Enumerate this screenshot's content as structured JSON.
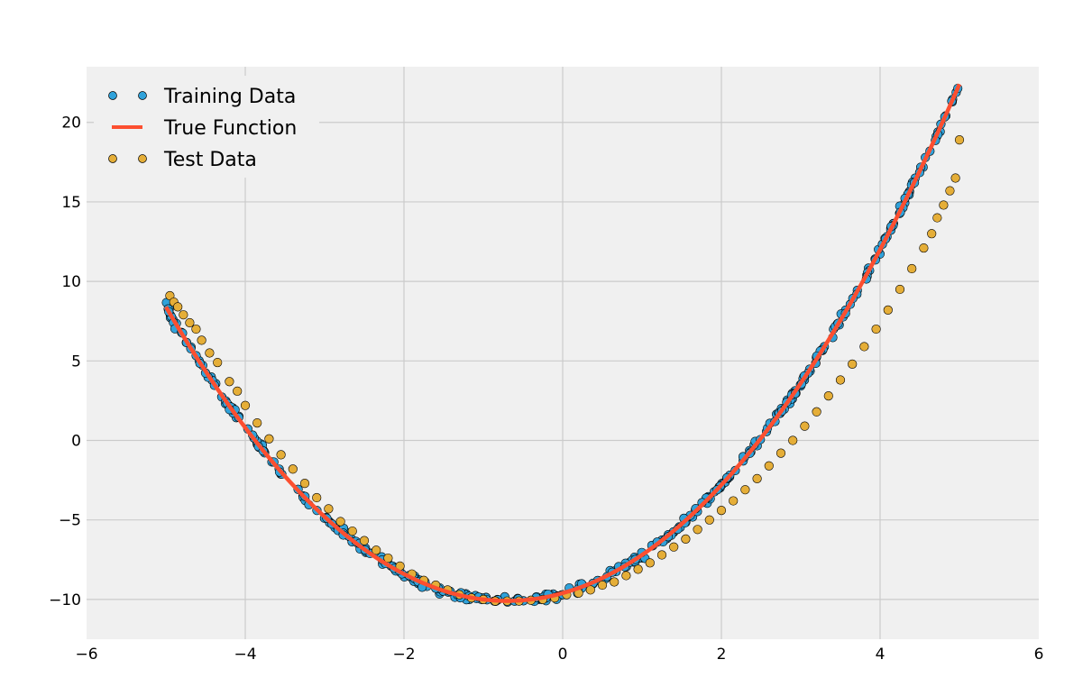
{
  "chart_data": {
    "type": "scatter",
    "title": "",
    "xlabel": "",
    "ylabel": "",
    "xlim": [
      -6,
      6
    ],
    "ylim": [
      -12.5,
      23.5
    ],
    "x_ticks": [
      -6,
      -4,
      -2,
      0,
      2,
      4,
      6
    ],
    "y_ticks": [
      -10,
      -5,
      0,
      5,
      10,
      15,
      20
    ],
    "x_tick_labels": [
      "−6",
      "−4",
      "−2",
      "0",
      "2",
      "4",
      "6"
    ],
    "y_tick_labels": [
      "−10",
      "−5",
      "0",
      "5",
      "10",
      "15",
      "20"
    ],
    "grid": true,
    "background": "#f0f0f0",
    "legend_position": "top-left",
    "true_function": {
      "name": "True Function",
      "formula": "x^2 + 1.4x - 9.6",
      "coefficients": {
        "a": 1.0,
        "b": 1.4,
        "c": -9.6
      },
      "x_range": [
        -5,
        5
      ],
      "color": "#fc4f30"
    },
    "series": [
      {
        "name": "Training Data",
        "color": "#30a2da",
        "count": 400,
        "x_range": [
          -5,
          5
        ],
        "noise_sd": 0.12
      },
      {
        "name": "True Function",
        "color": "#fc4f30"
      },
      {
        "name": "Test Data",
        "color": "#e5ae38",
        "x": [
          -4.95,
          -4.9,
          -4.85,
          -4.78,
          -4.7,
          -4.62,
          -4.55,
          -4.45,
          -4.35,
          -4.2,
          -4.1,
          -4.0,
          -3.85,
          -3.7,
          -3.55,
          -3.4,
          -3.25,
          -3.1,
          -2.95,
          -2.8,
          -2.65,
          -2.5,
          -2.35,
          -2.2,
          -2.05,
          -1.9,
          -1.75,
          -1.6,
          -1.45,
          -1.3,
          -1.15,
          -1.0,
          -0.85,
          -0.7,
          -0.55,
          -0.4,
          -0.25,
          -0.1,
          0.05,
          0.2,
          0.35,
          0.5,
          0.65,
          0.8,
          0.95,
          1.1,
          1.25,
          1.4,
          1.55,
          1.7,
          1.85,
          2.0,
          2.15,
          2.3,
          2.45,
          2.6,
          2.75,
          2.9,
          3.05,
          3.2,
          3.35,
          3.5,
          3.65,
          3.8,
          3.95,
          4.1,
          4.25,
          4.4,
          4.55,
          4.65,
          4.72,
          4.8,
          4.88,
          4.95,
          5.0
        ],
        "y": [
          9.1,
          8.7,
          8.4,
          7.9,
          7.4,
          7.0,
          6.3,
          5.5,
          4.9,
          3.7,
          3.1,
          2.2,
          1.1,
          0.1,
          -0.9,
          -1.8,
          -2.7,
          -3.6,
          -4.3,
          -5.1,
          -5.7,
          -6.3,
          -6.9,
          -7.4,
          -7.9,
          -8.4,
          -8.8,
          -9.1,
          -9.4,
          -9.7,
          -9.9,
          -10.0,
          -10.1,
          -10.1,
          -10.1,
          -10.05,
          -10.0,
          -9.9,
          -9.7,
          -9.6,
          -9.4,
          -9.1,
          -8.9,
          -8.5,
          -8.1,
          -7.7,
          -7.2,
          -6.7,
          -6.2,
          -5.6,
          -5.0,
          -4.4,
          -3.8,
          -3.1,
          -2.4,
          -1.6,
          -0.8,
          0.0,
          0.9,
          1.8,
          2.8,
          3.8,
          4.8,
          5.9,
          7.0,
          8.2,
          9.5,
          10.8,
          12.1,
          13.0,
          14.0,
          14.8,
          15.7,
          16.5,
          18.9
        ]
      }
    ]
  }
}
